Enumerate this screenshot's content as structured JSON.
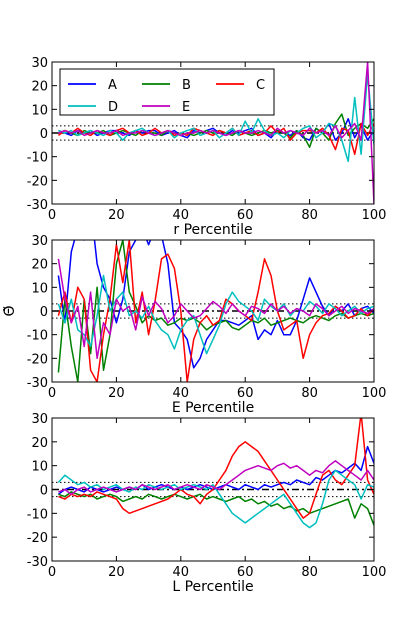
{
  "figure": {
    "shared_ylabel": "Θ̃"
  },
  "chart_data": [
    {
      "type": "line",
      "xlabel": "r Percentile",
      "ylabel": "",
      "xlim": [
        0,
        100
      ],
      "ylim": [
        -30,
        30
      ],
      "xticks": [
        0,
        20,
        40,
        60,
        80,
        100
      ],
      "yticks": [
        -30,
        -20,
        -10,
        0,
        10,
        20,
        30
      ],
      "reference_lines": [
        {
          "y": 0,
          "style": "dashdot"
        },
        {
          "y": 3,
          "style": "dotted"
        },
        {
          "y": -3,
          "style": "dotted"
        }
      ],
      "legend": {
        "placement": "top-left",
        "columns": 3
      },
      "x": [
        2,
        4,
        6,
        8,
        10,
        12,
        14,
        16,
        18,
        20,
        22,
        24,
        26,
        28,
        30,
        32,
        34,
        36,
        38,
        40,
        42,
        44,
        46,
        48,
        50,
        52,
        54,
        56,
        58,
        60,
        62,
        64,
        66,
        68,
        70,
        72,
        74,
        76,
        78,
        80,
        82,
        84,
        86,
        88,
        90,
        92,
        94,
        96,
        98,
        100
      ],
      "series": [
        {
          "name": "A",
          "color": "#0000ff",
          "values": [
            1,
            0,
            -1,
            1,
            0,
            1,
            -1,
            0,
            1,
            1,
            0,
            -1,
            1,
            0,
            1,
            1,
            -1,
            0,
            1,
            -1,
            -2,
            1,
            0,
            1,
            2,
            0,
            -1,
            1,
            0,
            1,
            2,
            -1,
            0,
            -2,
            1,
            0,
            -1,
            1,
            -2,
            -3,
            2,
            0,
            4,
            -3,
            0,
            6,
            -2,
            3,
            -3,
            1
          ]
        },
        {
          "name": "B",
          "color": "#008000",
          "values": [
            0,
            1,
            0,
            -1,
            1,
            0,
            0,
            1,
            -1,
            0,
            1,
            0,
            -1,
            1,
            0,
            0,
            -1,
            1,
            0,
            -1,
            0,
            -1,
            0,
            1,
            0,
            1,
            0,
            -1,
            1,
            0,
            -1,
            0,
            1,
            0,
            1,
            0,
            -2,
            1,
            -1,
            -6,
            2,
            0,
            -3,
            4,
            8,
            -1,
            2,
            4,
            2,
            6
          ]
        },
        {
          "name": "C",
          "color": "#ff0000",
          "values": [
            -1,
            1,
            0,
            2,
            0,
            -1,
            1,
            0,
            -1,
            1,
            2,
            0,
            1,
            -1,
            0,
            2,
            0,
            1,
            -1,
            0,
            -1,
            2,
            1,
            0,
            -1,
            1,
            0,
            2,
            -1,
            0,
            1,
            -1,
            0,
            3,
            0,
            2,
            -3,
            0,
            1,
            1,
            0,
            2,
            -1,
            -7,
            2,
            1,
            -9,
            4,
            -1,
            4
          ]
        },
        {
          "name": "D",
          "color": "#00bfbf",
          "values": [
            1,
            0,
            1,
            -1,
            0,
            1,
            0,
            -1,
            1,
            0,
            -3,
            0,
            1,
            2,
            0,
            -1,
            0,
            1,
            -2,
            0,
            1,
            2,
            -1,
            0,
            1,
            -2,
            0,
            2,
            -1,
            5,
            0,
            6,
            1,
            -1,
            0,
            -2,
            1,
            0,
            2,
            3,
            -2,
            0,
            4,
            3,
            -3,
            -12,
            15,
            -9,
            25,
            -5
          ]
        },
        {
          "name": "E",
          "color": "#bf00bf",
          "values": [
            0,
            1,
            0,
            1,
            -1,
            0,
            1,
            0,
            0,
            1,
            -1,
            0,
            0,
            1,
            0,
            -1,
            0,
            1,
            0,
            -1,
            0,
            0,
            1,
            0,
            1,
            0,
            -1,
            0,
            1,
            0,
            0,
            1,
            0,
            -1,
            2,
            0,
            1,
            0,
            -1,
            2,
            0,
            1,
            -1,
            3,
            -2,
            1,
            4,
            -3,
            30,
            -30
          ]
        }
      ]
    },
    {
      "type": "line",
      "xlabel": "E Percentile",
      "ylabel": "",
      "xlim": [
        0,
        100
      ],
      "ylim": [
        -30,
        30
      ],
      "xticks": [
        0,
        20,
        40,
        60,
        80,
        100
      ],
      "yticks": [
        -30,
        -20,
        -10,
        0,
        10,
        20,
        30
      ],
      "reference_lines": [
        {
          "y": 0,
          "style": "dashdot"
        },
        {
          "y": 3,
          "style": "dotted"
        },
        {
          "y": -3,
          "style": "dotted"
        }
      ],
      "x": [
        2,
        4,
        6,
        8,
        10,
        12,
        14,
        16,
        18,
        20,
        22,
        24,
        26,
        28,
        30,
        32,
        34,
        36,
        38,
        40,
        42,
        44,
        46,
        48,
        50,
        52,
        54,
        56,
        58,
        60,
        62,
        64,
        66,
        68,
        70,
        72,
        74,
        76,
        78,
        80,
        82,
        84,
        86,
        88,
        90,
        92,
        94,
        96,
        98,
        100
      ],
      "series": [
        {
          "name": "A",
          "color": "#0000ff",
          "values": [
            15,
            -5,
            25,
            35,
            30,
            45,
            20,
            10,
            5,
            -5,
            5,
            25,
            30,
            35,
            28,
            35,
            32,
            20,
            -5,
            -8,
            -12,
            -24,
            -20,
            -12,
            -8,
            -4,
            -4,
            -5,
            -6,
            -4,
            -2,
            -12,
            -8,
            -10,
            -4,
            -10,
            -10,
            -4,
            5,
            14,
            8,
            2,
            -2,
            2,
            0,
            3,
            -2,
            1,
            2,
            -1
          ]
        },
        {
          "name": "B",
          "color": "#008000",
          "values": [
            -26,
            5,
            -15,
            -30,
            5,
            -18,
            10,
            -25,
            -10,
            20,
            30,
            8,
            2,
            -5,
            -2,
            -4,
            -3,
            -6,
            -5,
            -3,
            -4,
            -3,
            -5,
            -8,
            -6,
            -5,
            -4,
            -7,
            -8,
            -6,
            -4,
            -5,
            -3,
            -6,
            -5,
            -4,
            -3,
            -4,
            -5,
            -3,
            -2,
            -3,
            -4,
            -2,
            -1,
            -3,
            -2,
            -1,
            -2,
            -1
          ]
        },
        {
          "name": "C",
          "color": "#ff0000",
          "values": [
            -2,
            8,
            -5,
            10,
            5,
            -25,
            -30,
            -10,
            5,
            28,
            12,
            30,
            -5,
            8,
            -10,
            4,
            22,
            24,
            18,
            0,
            -30,
            -12,
            -5,
            -2,
            -6,
            -4,
            5,
            3,
            0,
            -2,
            -4,
            8,
            22,
            15,
            0,
            -8,
            -6,
            -4,
            -20,
            -10,
            -5,
            -2,
            -1,
            2,
            0,
            -3,
            -2,
            1,
            -2,
            1
          ]
        },
        {
          "name": "D",
          "color": "#00bfbf",
          "values": [
            3,
            -5,
            5,
            -8,
            -10,
            -15,
            -2,
            15,
            0,
            5,
            8,
            -2,
            0,
            -3,
            2,
            -4,
            -8,
            -10,
            -16,
            -8,
            -4,
            -2,
            -10,
            -18,
            -12,
            -6,
            3,
            8,
            4,
            2,
            0,
            -4,
            5,
            2,
            0,
            3,
            -2,
            1,
            0,
            4,
            2,
            -1,
            3,
            1,
            -2,
            0,
            2,
            -1,
            1,
            2
          ]
        },
        {
          "name": "E",
          "color": "#bf00bf",
          "values": [
            22,
            5,
            -5,
            2,
            -15,
            8,
            -20,
            -5,
            -10,
            5,
            0,
            2,
            -8,
            6,
            -2,
            4,
            1,
            -5,
            -2,
            3,
            0,
            -3,
            -2,
            1,
            4,
            2,
            -1,
            3,
            0,
            -2,
            2,
            1,
            -1,
            3,
            0,
            2,
            -1,
            1,
            0,
            -2,
            3,
            1,
            -2,
            0,
            2,
            -1,
            1,
            0,
            -1,
            1
          ]
        }
      ]
    },
    {
      "type": "line",
      "xlabel": "L Percentile",
      "ylabel": "",
      "xlim": [
        0,
        100
      ],
      "ylim": [
        -30,
        30
      ],
      "xticks": [
        0,
        20,
        40,
        60,
        80,
        100
      ],
      "yticks": [
        -30,
        -20,
        -10,
        0,
        10,
        20,
        30
      ],
      "reference_lines": [
        {
          "y": 0,
          "style": "dashdot"
        },
        {
          "y": 3,
          "style": "dotted"
        },
        {
          "y": -3,
          "style": "dotted"
        }
      ],
      "x": [
        2,
        4,
        6,
        8,
        10,
        12,
        14,
        16,
        18,
        20,
        22,
        24,
        26,
        28,
        30,
        32,
        34,
        36,
        38,
        40,
        42,
        44,
        46,
        48,
        50,
        52,
        54,
        56,
        58,
        60,
        62,
        64,
        66,
        68,
        70,
        72,
        74,
        76,
        78,
        80,
        82,
        84,
        86,
        88,
        90,
        92,
        94,
        96,
        98,
        100
      ],
      "series": [
        {
          "name": "A",
          "color": "#0000ff",
          "values": [
            -2,
            0,
            1,
            0,
            -1,
            1,
            0,
            -1,
            0,
            1,
            0,
            1,
            0,
            2,
            0,
            1,
            2,
            1,
            0,
            1,
            0,
            1,
            2,
            1,
            0,
            1,
            2,
            1,
            0,
            2,
            1,
            0,
            2,
            1,
            2,
            3,
            2,
            4,
            3,
            2,
            5,
            4,
            6,
            8,
            7,
            9,
            11,
            8,
            18,
            11
          ]
        },
        {
          "name": "B",
          "color": "#008000",
          "values": [
            -2,
            -3,
            -1,
            -2,
            -3,
            -2,
            -4,
            -3,
            -2,
            -3,
            -5,
            -4,
            -3,
            -4,
            -2,
            -3,
            -4,
            -3,
            -2,
            -3,
            -4,
            -3,
            -2,
            -4,
            -3,
            -4,
            -5,
            -4,
            -3,
            -5,
            -4,
            -6,
            -5,
            -7,
            -6,
            -8,
            -7,
            -9,
            -8,
            -10,
            -9,
            -8,
            -7,
            -6,
            -5,
            -4,
            -12,
            -6,
            -8,
            -15
          ]
        },
        {
          "name": "C",
          "color": "#ff0000",
          "values": [
            -3,
            -4,
            -2,
            -3,
            -2,
            -3,
            -1,
            -2,
            -3,
            -4,
            -8,
            -10,
            -9,
            -8,
            -7,
            -6,
            -5,
            -4,
            -2,
            0,
            -2,
            -3,
            -6,
            -2,
            0,
            4,
            8,
            14,
            18,
            20,
            18,
            16,
            12,
            8,
            4,
            0,
            -4,
            -8,
            -12,
            -10,
            -2,
            6,
            8,
            4,
            2,
            6,
            10,
            32,
            4,
            -2
          ]
        },
        {
          "name": "D",
          "color": "#00bfbf",
          "values": [
            3,
            6,
            4,
            2,
            3,
            1,
            2,
            0,
            1,
            2,
            0,
            -1,
            1,
            0,
            2,
            1,
            0,
            1,
            2,
            0,
            1,
            2,
            1,
            0,
            2,
            -2,
            -6,
            -10,
            -12,
            -14,
            -12,
            -10,
            -8,
            -6,
            -4,
            -2,
            -6,
            -10,
            -14,
            -16,
            -14,
            -6,
            4,
            8,
            6,
            4,
            2,
            -4,
            2,
            1
          ]
        },
        {
          "name": "E",
          "color": "#bf00bf",
          "values": [
            -1,
            0,
            -2,
            0,
            1,
            -1,
            0,
            1,
            0,
            -1,
            0,
            1,
            0,
            2,
            1,
            0,
            1,
            2,
            0,
            1,
            2,
            1,
            0,
            2,
            1,
            0,
            2,
            4,
            6,
            8,
            9,
            10,
            9,
            8,
            10,
            11,
            9,
            10,
            8,
            6,
            8,
            7,
            10,
            12,
            10,
            8,
            6,
            4,
            8,
            4
          ]
        }
      ]
    }
  ]
}
